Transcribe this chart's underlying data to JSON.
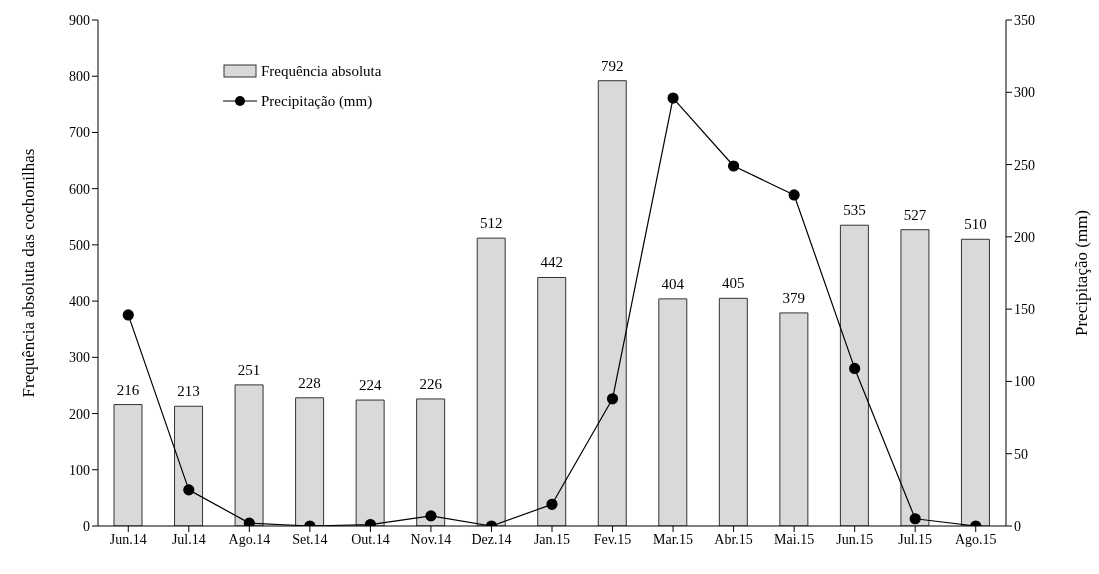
{
  "chart_data": {
    "type": "bar",
    "categories": [
      "Jun.14",
      "Jul.14",
      "Ago.14",
      "Set.14",
      "Out.14",
      "Nov.14",
      "Dez.14",
      "Jan.15",
      "Fev.15",
      "Mar.15",
      "Abr.15",
      "Mai.15",
      "Jun.15",
      "Jul.15",
      "Ago.15"
    ],
    "ylabel": "Frequência absoluta das cochonilhas",
    "y2label": "Precipitação (mm)",
    "series": [
      {
        "name": "Frequência absoluta",
        "color": "#d9d9d9",
        "values": [
          216,
          213,
          251,
          228,
          224,
          226,
          512,
          442,
          792,
          404,
          405,
          379,
          535,
          527,
          510
        ],
        "value_labels": [
          "216",
          "213",
          "251",
          "228",
          "224",
          "226",
          "512",
          "442",
          "792",
          "404",
          "405",
          "379",
          "535",
          "527",
          "510"
        ]
      },
      {
        "name": "Precipitação (mm)",
        "type": "line",
        "axis": "y2",
        "color": "#000000",
        "marker": "circle",
        "values": [
          146,
          25,
          2,
          0,
          1,
          7,
          0,
          15,
          88,
          296,
          249,
          229,
          109,
          5,
          0
        ]
      }
    ],
    "ylim": [
      0,
      900
    ],
    "yticks": [
      0,
      100,
      200,
      300,
      400,
      500,
      600,
      700,
      800,
      900
    ],
    "y2lim": [
      0,
      350
    ],
    "y2ticks": [
      0,
      50,
      100,
      150,
      200,
      250,
      300,
      350
    ],
    "legend": "top left",
    "grid": false
  }
}
